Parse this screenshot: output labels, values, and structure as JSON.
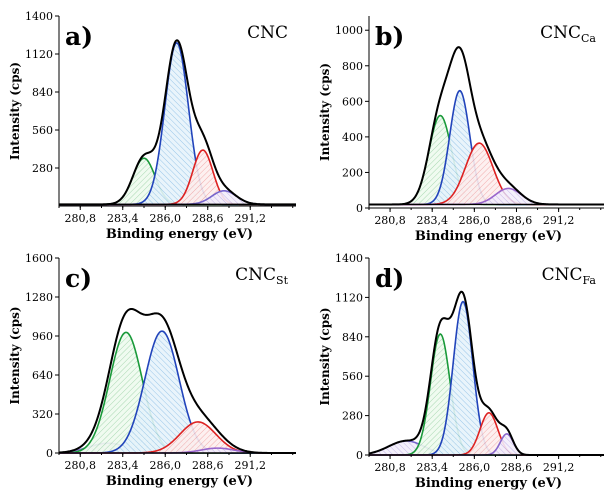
{
  "chart_data": [
    {
      "type": "line",
      "panel": "a)",
      "sample": {
        "main": "CNC",
        "sub": ""
      },
      "xlabel": "Binding energy (eV)",
      "ylabel": "Intensity (cps)",
      "xlim": [
        279.5,
        294.0
      ],
      "ylim": [
        0,
        1400
      ],
      "xticks": [
        280.8,
        283.4,
        286.0,
        288.6,
        291.2
      ],
      "xtick_labels": [
        "280,8",
        "283,4",
        "286,0",
        "288,6",
        "291,2"
      ],
      "yticks": [
        280,
        560,
        840,
        1120,
        1400
      ],
      "baseline": 12,
      "components": [
        {
          "name": "green",
          "color": "#1a9a3a",
          "center": 284.7,
          "height": 340,
          "sigma": 0.68,
          "sigma_right": 0.68
        },
        {
          "name": "blue",
          "color": "#2244bb",
          "center": 286.7,
          "height": 1190,
          "sigma": 0.72,
          "sigma_right": 0.72
        },
        {
          "name": "red",
          "color": "#dd2222",
          "center": 288.3,
          "height": 400,
          "sigma": 0.62,
          "sigma_right": 0.62
        },
        {
          "name": "purple",
          "color": "#7766cc",
          "center": 289.6,
          "height": 100,
          "sigma": 0.75,
          "sigma_right": 0.75
        }
      ]
    },
    {
      "type": "line",
      "panel": "b)",
      "sample": {
        "main": "CNC",
        "sub": "Ca"
      },
      "xlabel": "Binding energy (eV)",
      "ylabel": "Intensity (cps)",
      "xlim": [
        279.5,
        294.0
      ],
      "ylim": [
        0,
        1080
      ],
      "xticks": [
        280.8,
        283.4,
        286.0,
        288.6,
        291.2
      ],
      "xtick_labels": [
        "280,8",
        "283,4",
        "286,0",
        "288,6",
        "291,2"
      ],
      "yticks": [
        0,
        200,
        400,
        600,
        800,
        1000
      ],
      "baseline": 20,
      "components": [
        {
          "name": "green",
          "color": "#1a9a3a",
          "center": 283.9,
          "height": 500,
          "sigma": 0.7,
          "sigma_right": 0.7
        },
        {
          "name": "blue",
          "color": "#2244bb",
          "center": 285.1,
          "height": 640,
          "sigma": 0.62,
          "sigma_right": 0.62
        },
        {
          "name": "red",
          "color": "#dd2222",
          "center": 286.3,
          "height": 345,
          "sigma": 0.85,
          "sigma_right": 0.85
        },
        {
          "name": "purple",
          "color": "#9a66cc",
          "center": 288.1,
          "height": 90,
          "sigma": 0.8,
          "sigma_right": 0.8
        }
      ]
    },
    {
      "type": "line",
      "panel": "c)",
      "sample": {
        "main": "CNC",
        "sub": "St"
      },
      "xlabel": "Binding energy (eV)",
      "ylabel": "Intensity (cps)",
      "xlim": [
        279.5,
        294.0
      ],
      "ylim": [
        0,
        1600
      ],
      "xticks": [
        280.8,
        283.4,
        286.0,
        288.6,
        291.2
      ],
      "xtick_labels": [
        "280,8",
        "283,4",
        "286,0",
        "288,6",
        "291,2"
      ],
      "yticks": [
        0,
        320,
        640,
        960,
        1280,
        1600
      ],
      "baseline": 0,
      "components": [
        {
          "name": "purple-low",
          "color": "#8877cc",
          "center": 282.5,
          "height": 80,
          "sigma": 1.2,
          "sigma_right": 1.2
        },
        {
          "name": "green",
          "color": "#1a9a3a",
          "center": 283.6,
          "height": 990,
          "sigma": 1.0,
          "sigma_right": 1.0
        },
        {
          "name": "blue",
          "color": "#2244bb",
          "center": 285.8,
          "height": 1000,
          "sigma": 1.05,
          "sigma_right": 1.05
        },
        {
          "name": "red",
          "color": "#dd2222",
          "center": 288.0,
          "height": 255,
          "sigma": 1.1,
          "sigma_right": 1.1
        },
        {
          "name": "purple-high",
          "color": "#9966cc",
          "center": 289.2,
          "height": 40,
          "sigma": 1.0,
          "sigma_right": 1.0
        }
      ]
    },
    {
      "type": "line",
      "panel": "d)",
      "sample": {
        "main": "CNC",
        "sub": "Fa"
      },
      "xlabel": "Binding energy (eV)",
      "ylabel": "Intensity (cps)",
      "xlim": [
        279.5,
        294.0
      ],
      "ylim": [
        0,
        1400
      ],
      "xticks": [
        280.8,
        283.4,
        286.0,
        288.6,
        291.2
      ],
      "xtick_labels": [
        "280,8",
        "283,4",
        "286,0",
        "288,6",
        "291,2"
      ],
      "yticks": [
        0,
        280,
        560,
        840,
        1120,
        1400
      ],
      "baseline": 0,
      "components": [
        {
          "name": "purple-low",
          "color": "#7766cc",
          "center": 281.8,
          "height": 100,
          "sigma": 1.1,
          "sigma_right": 1.1
        },
        {
          "name": "green",
          "color": "#1a9a3a",
          "center": 283.9,
          "height": 860,
          "sigma": 0.6,
          "sigma_right": 0.6
        },
        {
          "name": "blue",
          "color": "#2244bb",
          "center": 285.3,
          "height": 1090,
          "sigma": 0.6,
          "sigma_right": 0.6
        },
        {
          "name": "red",
          "color": "#dd2222",
          "center": 286.9,
          "height": 300,
          "sigma": 0.55,
          "sigma_right": 0.55
        },
        {
          "name": "purple-high",
          "color": "#8866cc",
          "center": 288.0,
          "height": 150,
          "sigma": 0.4,
          "sigma_right": 0.4
        }
      ]
    }
  ]
}
